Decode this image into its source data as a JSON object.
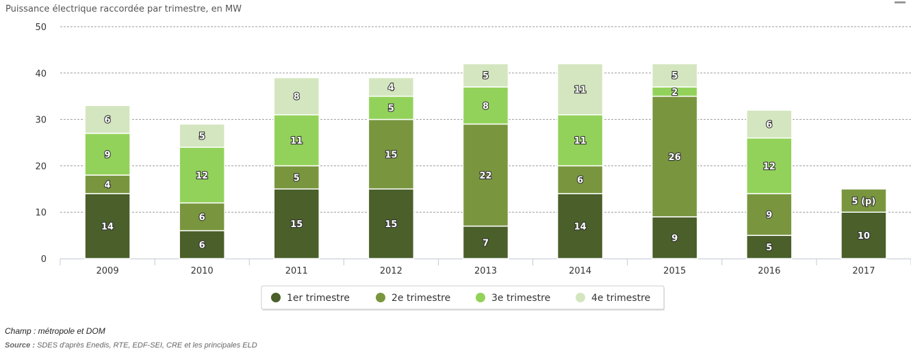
{
  "chart_data": {
    "type": "bar",
    "stacked": true,
    "title": "Puissance électrique raccordée par trimestre, en MW",
    "categories": [
      "2009",
      "2010",
      "2011",
      "2012",
      "2013",
      "2014",
      "2015",
      "2016",
      "2017"
    ],
    "series": [
      {
        "name": "1er trimestre",
        "color": "#4a5f2a",
        "values": [
          14,
          6,
          15,
          15,
          7,
          14,
          9,
          5,
          10
        ],
        "labels": [
          "14",
          "6",
          "15",
          "15",
          "7",
          "14",
          "9",
          "5",
          "10"
        ]
      },
      {
        "name": "2e trimestre",
        "color": "#79963f",
        "values": [
          4,
          6,
          5,
          15,
          22,
          6,
          26,
          9,
          5
        ],
        "labels": [
          "4",
          "6",
          "5",
          "15",
          "22",
          "6",
          "26",
          "9",
          "5 (p)"
        ]
      },
      {
        "name": "3e trimestre",
        "color": "#93d25a",
        "values": [
          9,
          12,
          11,
          5,
          8,
          11,
          2,
          12,
          null
        ],
        "labels": [
          "9",
          "12",
          "11",
          "5",
          "8",
          "11",
          "2",
          "12",
          null
        ]
      },
      {
        "name": "4e trimestre",
        "color": "#d4e6bf",
        "values": [
          6,
          5,
          8,
          4,
          5,
          11,
          5,
          6,
          null
        ],
        "labels": [
          "6",
          "5",
          "8",
          "4",
          "5",
          "11",
          "5",
          "6",
          null
        ]
      }
    ],
    "ylim": [
      0,
      50
    ],
    "yticks": [
      0,
      10,
      20,
      30,
      40,
      50
    ],
    "grid": true,
    "legend_position": "bottom"
  },
  "notes": {
    "champ": "Champ : métropole et DOM",
    "source_label": "Source :",
    "source_text": " SDES d'après Enedis, RTE, EDF-SEI, CRE et les principales ELD"
  },
  "icons": {
    "menu": "menu-icon"
  }
}
